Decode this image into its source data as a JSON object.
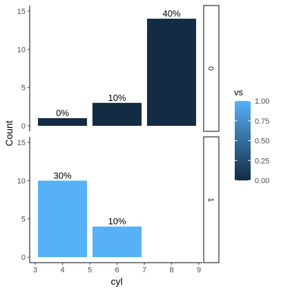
{
  "chart_data": {
    "type": "bar",
    "xlabel": "cyl",
    "ylabel": "Count",
    "x_ticks": [
      3,
      4,
      5,
      6,
      7,
      8,
      9
    ],
    "xlim": [
      3,
      9
    ],
    "ylim": [
      0,
      15
    ],
    "y_ticks": [
      0,
      5,
      10,
      15
    ],
    "facet_variable": "vs",
    "facets": [
      {
        "strip_label": "0",
        "vs": 0,
        "bars": [
          {
            "x": 4,
            "count": 1,
            "label": "0%"
          },
          {
            "x": 6,
            "count": 3,
            "label": "10%"
          },
          {
            "x": 8,
            "count": 14,
            "label": "40%"
          }
        ]
      },
      {
        "strip_label": "1",
        "vs": 1,
        "bars": [
          {
            "x": 4,
            "count": 10,
            "label": "30%"
          },
          {
            "x": 6,
            "count": 4,
            "label": "10%"
          }
        ]
      }
    ],
    "legend": {
      "title": "vs",
      "ticks": [
        "1.00",
        "0.75",
        "0.50",
        "0.25",
        "0.00"
      ],
      "low_color": "#132B43",
      "high_color": "#56B1F7",
      "placement": "right"
    },
    "grid": false
  }
}
